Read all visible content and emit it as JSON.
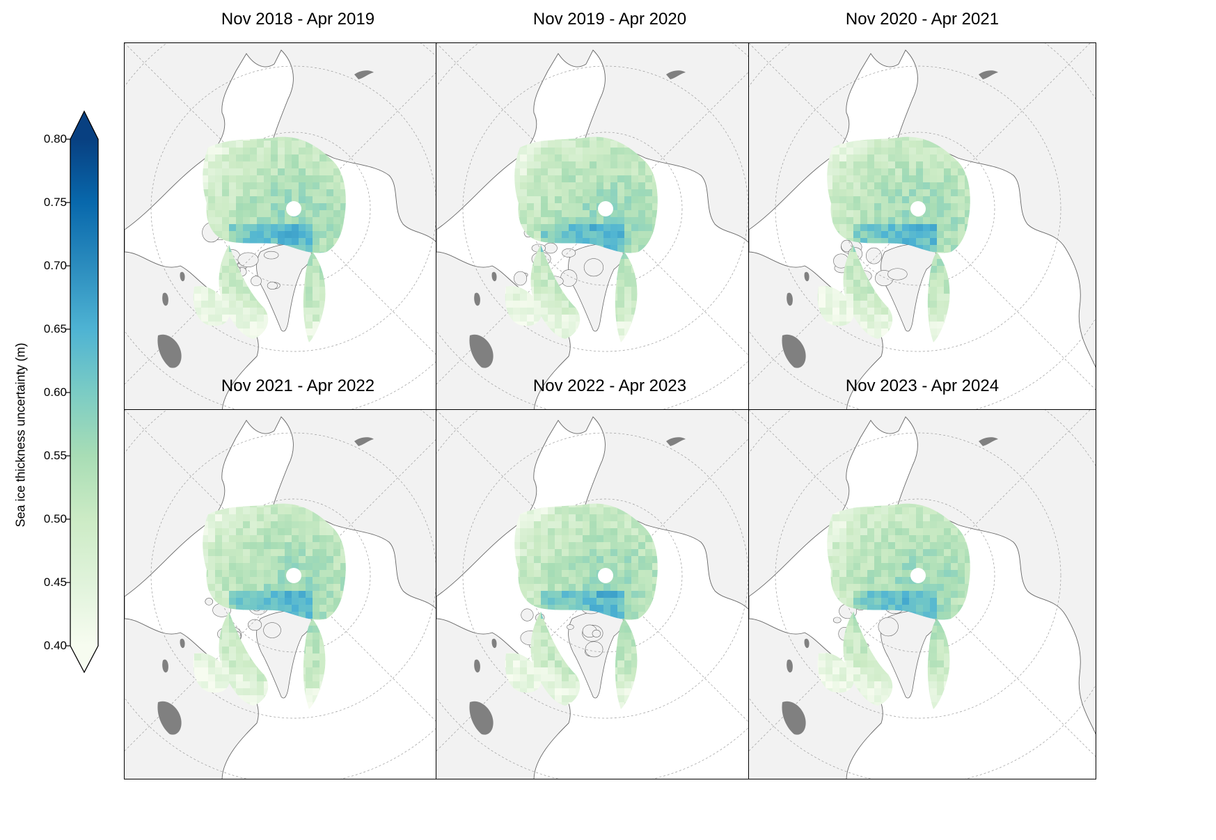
{
  "colorbar": {
    "label": "Sea ice thickness uncertainty (m)",
    "min": 0.4,
    "max": 0.8,
    "extend": "both",
    "colormap": "GnBu",
    "colors": [
      "#f7fcf0",
      "#e0f3db",
      "#ccebc5",
      "#a8ddb5",
      "#7bccc4",
      "#4eb3d3",
      "#2b8cbe",
      "#0868ac",
      "#084081"
    ],
    "ticks": [
      "0.40",
      "0.45",
      "0.50",
      "0.55",
      "0.60",
      "0.65",
      "0.70",
      "0.75",
      "0.80"
    ]
  },
  "map": {
    "projection": "north-polar-stereographic",
    "land_color": "#f2f2f2",
    "ocean_color": "#ffffff",
    "lake_color": "#808080",
    "coastline_color": "#666666",
    "graticule_color": "#9a9a9a"
  },
  "panels": [
    {
      "title": "Nov 2018 - Apr 2019"
    },
    {
      "title": "Nov 2019 - Apr 2020"
    },
    {
      "title": "Nov 2020 - Apr 2021"
    },
    {
      "title": "Nov 2021 - Apr 2022"
    },
    {
      "title": "Nov 2022 - Apr 2023"
    },
    {
      "title": "Nov 2023 - Apr 2024"
    }
  ]
}
